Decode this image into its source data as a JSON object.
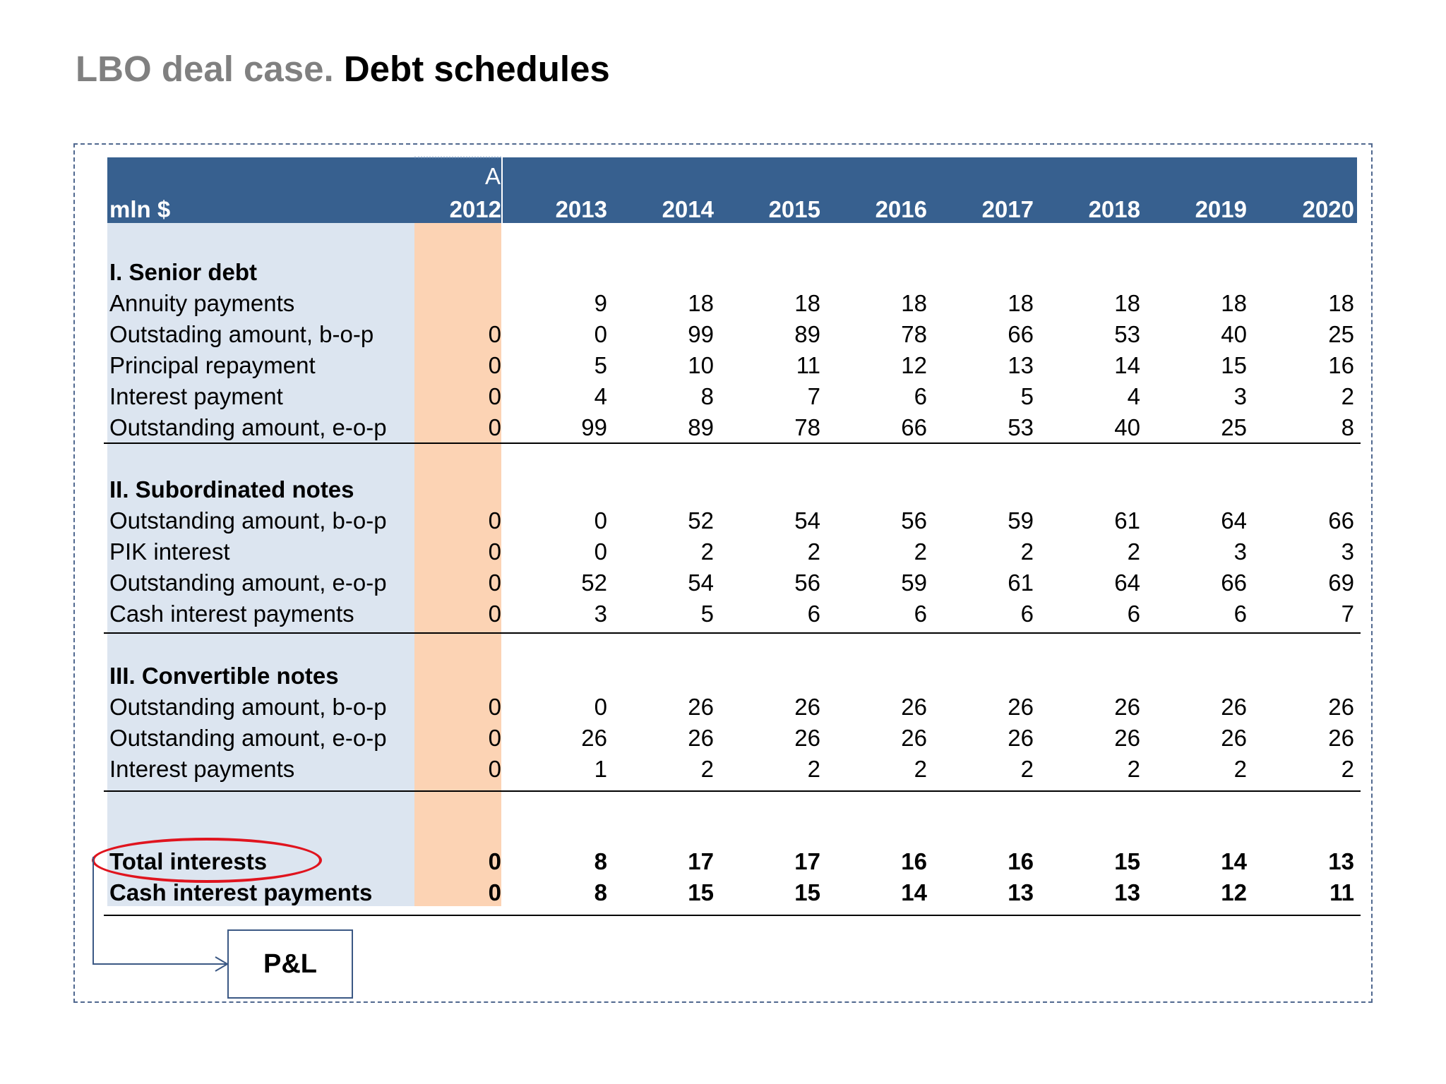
{
  "title": {
    "prefix": "LBO deal case.",
    "main": "Debt schedules"
  },
  "table": {
    "unit_label": "mln $",
    "actual_marker": "A",
    "years": [
      "2012",
      "2013",
      "2014",
      "2015",
      "2016",
      "2017",
      "2018",
      "2019",
      "2020"
    ],
    "sections": [
      {
        "heading": "I. Senior debt",
        "rows": [
          {
            "label": "Annuity payments",
            "values": [
              "",
              "9",
              "18",
              "18",
              "18",
              "18",
              "18",
              "18",
              "18"
            ]
          },
          {
            "label": "Outstading amount, b-o-p",
            "values": [
              "0",
              "0",
              "99",
              "89",
              "78",
              "66",
              "53",
              "40",
              "25"
            ]
          },
          {
            "label": "Principal repayment",
            "values": [
              "0",
              "5",
              "10",
              "11",
              "12",
              "13",
              "14",
              "15",
              "16"
            ]
          },
          {
            "label": "Interest payment",
            "values": [
              "0",
              "4",
              "8",
              "7",
              "6",
              "5",
              "4",
              "3",
              "2"
            ]
          },
          {
            "label": "Outstanding amount, e-o-p",
            "values": [
              "0",
              "99",
              "89",
              "78",
              "66",
              "53",
              "40",
              "25",
              "8"
            ]
          }
        ]
      },
      {
        "heading": "II. Subordinated notes",
        "rows": [
          {
            "label": "Outstanding amount, b-o-p",
            "values": [
              "0",
              "0",
              "52",
              "54",
              "56",
              "59",
              "61",
              "64",
              "66"
            ]
          },
          {
            "label": "PIK interest",
            "values": [
              "0",
              "0",
              "2",
              "2",
              "2",
              "2",
              "2",
              "3",
              "3"
            ]
          },
          {
            "label": "Outstanding amount, e-o-p",
            "values": [
              "0",
              "52",
              "54",
              "56",
              "59",
              "61",
              "64",
              "66",
              "69"
            ]
          },
          {
            "label": "Cash interest payments",
            "values": [
              "0",
              "3",
              "5",
              "6",
              "6",
              "6",
              "6",
              "6",
              "7"
            ]
          }
        ]
      },
      {
        "heading": "III. Convertible notes",
        "rows": [
          {
            "label": "Outstanding amount, b-o-p",
            "values": [
              "0",
              "0",
              "26",
              "26",
              "26",
              "26",
              "26",
              "26",
              "26"
            ]
          },
          {
            "label": "Outstanding amount, e-o-p",
            "values": [
              "0",
              "26",
              "26",
              "26",
              "26",
              "26",
              "26",
              "26",
              "26"
            ]
          },
          {
            "label": "Interest payments",
            "values": [
              "0",
              "1",
              "2",
              "2",
              "2",
              "2",
              "2",
              "2",
              "2"
            ]
          }
        ]
      }
    ],
    "totals": [
      {
        "label": "Total interests",
        "values": [
          "0",
          "8",
          "17",
          "17",
          "16",
          "16",
          "15",
          "14",
          "13"
        ]
      },
      {
        "label": "Cash interest payments",
        "values": [
          "0",
          "8",
          "15",
          "15",
          "14",
          "13",
          "13",
          "12",
          "11"
        ]
      }
    ]
  },
  "callout": {
    "target_label": "P&L",
    "highlight_color": "#e0141e"
  },
  "colors": {
    "header": "#37608f",
    "label_column": "#dce5f0",
    "actual_column": "#fcd3b4"
  }
}
